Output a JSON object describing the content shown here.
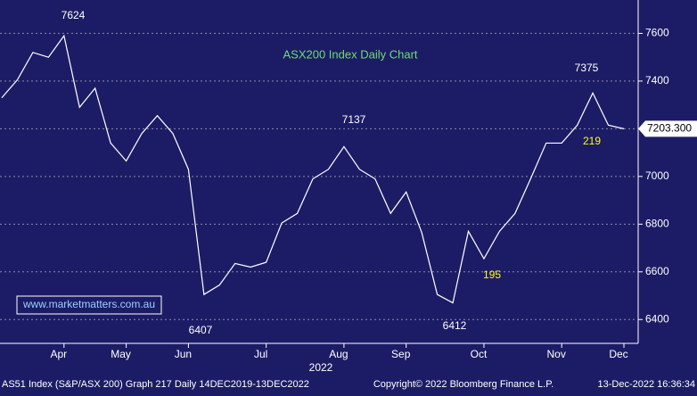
{
  "chart_data": {
    "type": "line",
    "title": "ASX200 Index Daily Chart",
    "xlabel": "2022",
    "categories": [
      null,
      null,
      null,
      null,
      "Apr",
      null,
      null,
      null,
      "May",
      null,
      null,
      null,
      "Jun",
      null,
      null,
      null,
      null,
      "Jul",
      null,
      null,
      null,
      null,
      "Aug",
      null,
      null,
      null,
      "Sep",
      null,
      null,
      null,
      null,
      "Oct",
      null,
      null,
      null,
      null,
      "Nov",
      null,
      null,
      null,
      "Dec"
    ],
    "series": [
      {
        "name": "AS51 Index",
        "color": "#ffffff",
        "values": [
          7330,
          7405,
          7520,
          7500,
          7590,
          7290,
          7370,
          7140,
          7065,
          7180,
          7255,
          7180,
          7030,
          6505,
          6545,
          6635,
          6620,
          6640,
          6805,
          6845,
          6990,
          7030,
          7125,
          7030,
          6990,
          6845,
          6935,
          6765,
          6505,
          6470,
          6770,
          6655,
          6770,
          6845,
          6990,
          7140,
          7140,
          7215,
          7350,
          7215,
          7200
        ]
      }
    ],
    "ylim": [
      6300,
      7740
    ],
    "yticks": [
      6400,
      6600,
      6800,
      7000,
      7200,
      7400,
      7600
    ],
    "grid": true,
    "last_price_label": "7203.300",
    "annotations": [
      {
        "text": "7624",
        "color": "#ffffff"
      },
      {
        "text": "7137",
        "color": "#ffffff"
      },
      {
        "text": "6407",
        "color": "#ffffff"
      },
      {
        "text": "6412",
        "color": "#ffffff"
      },
      {
        "text": "7375",
        "color": "#ffffff"
      },
      {
        "text": "219",
        "color": "#ffff00"
      },
      {
        "text": "195",
        "color": "#ffff00"
      }
    ],
    "watermark": "www.marketmatters.com.au",
    "footer": {
      "left": "AS51 Index (S&P/ASX 200) Graph 217  Daily 14DEC2019-13DEC2022",
      "center": "Copyright© 2022 Bloomberg Finance L.P.",
      "right": "13-Dec-2022 16:36:34"
    }
  }
}
